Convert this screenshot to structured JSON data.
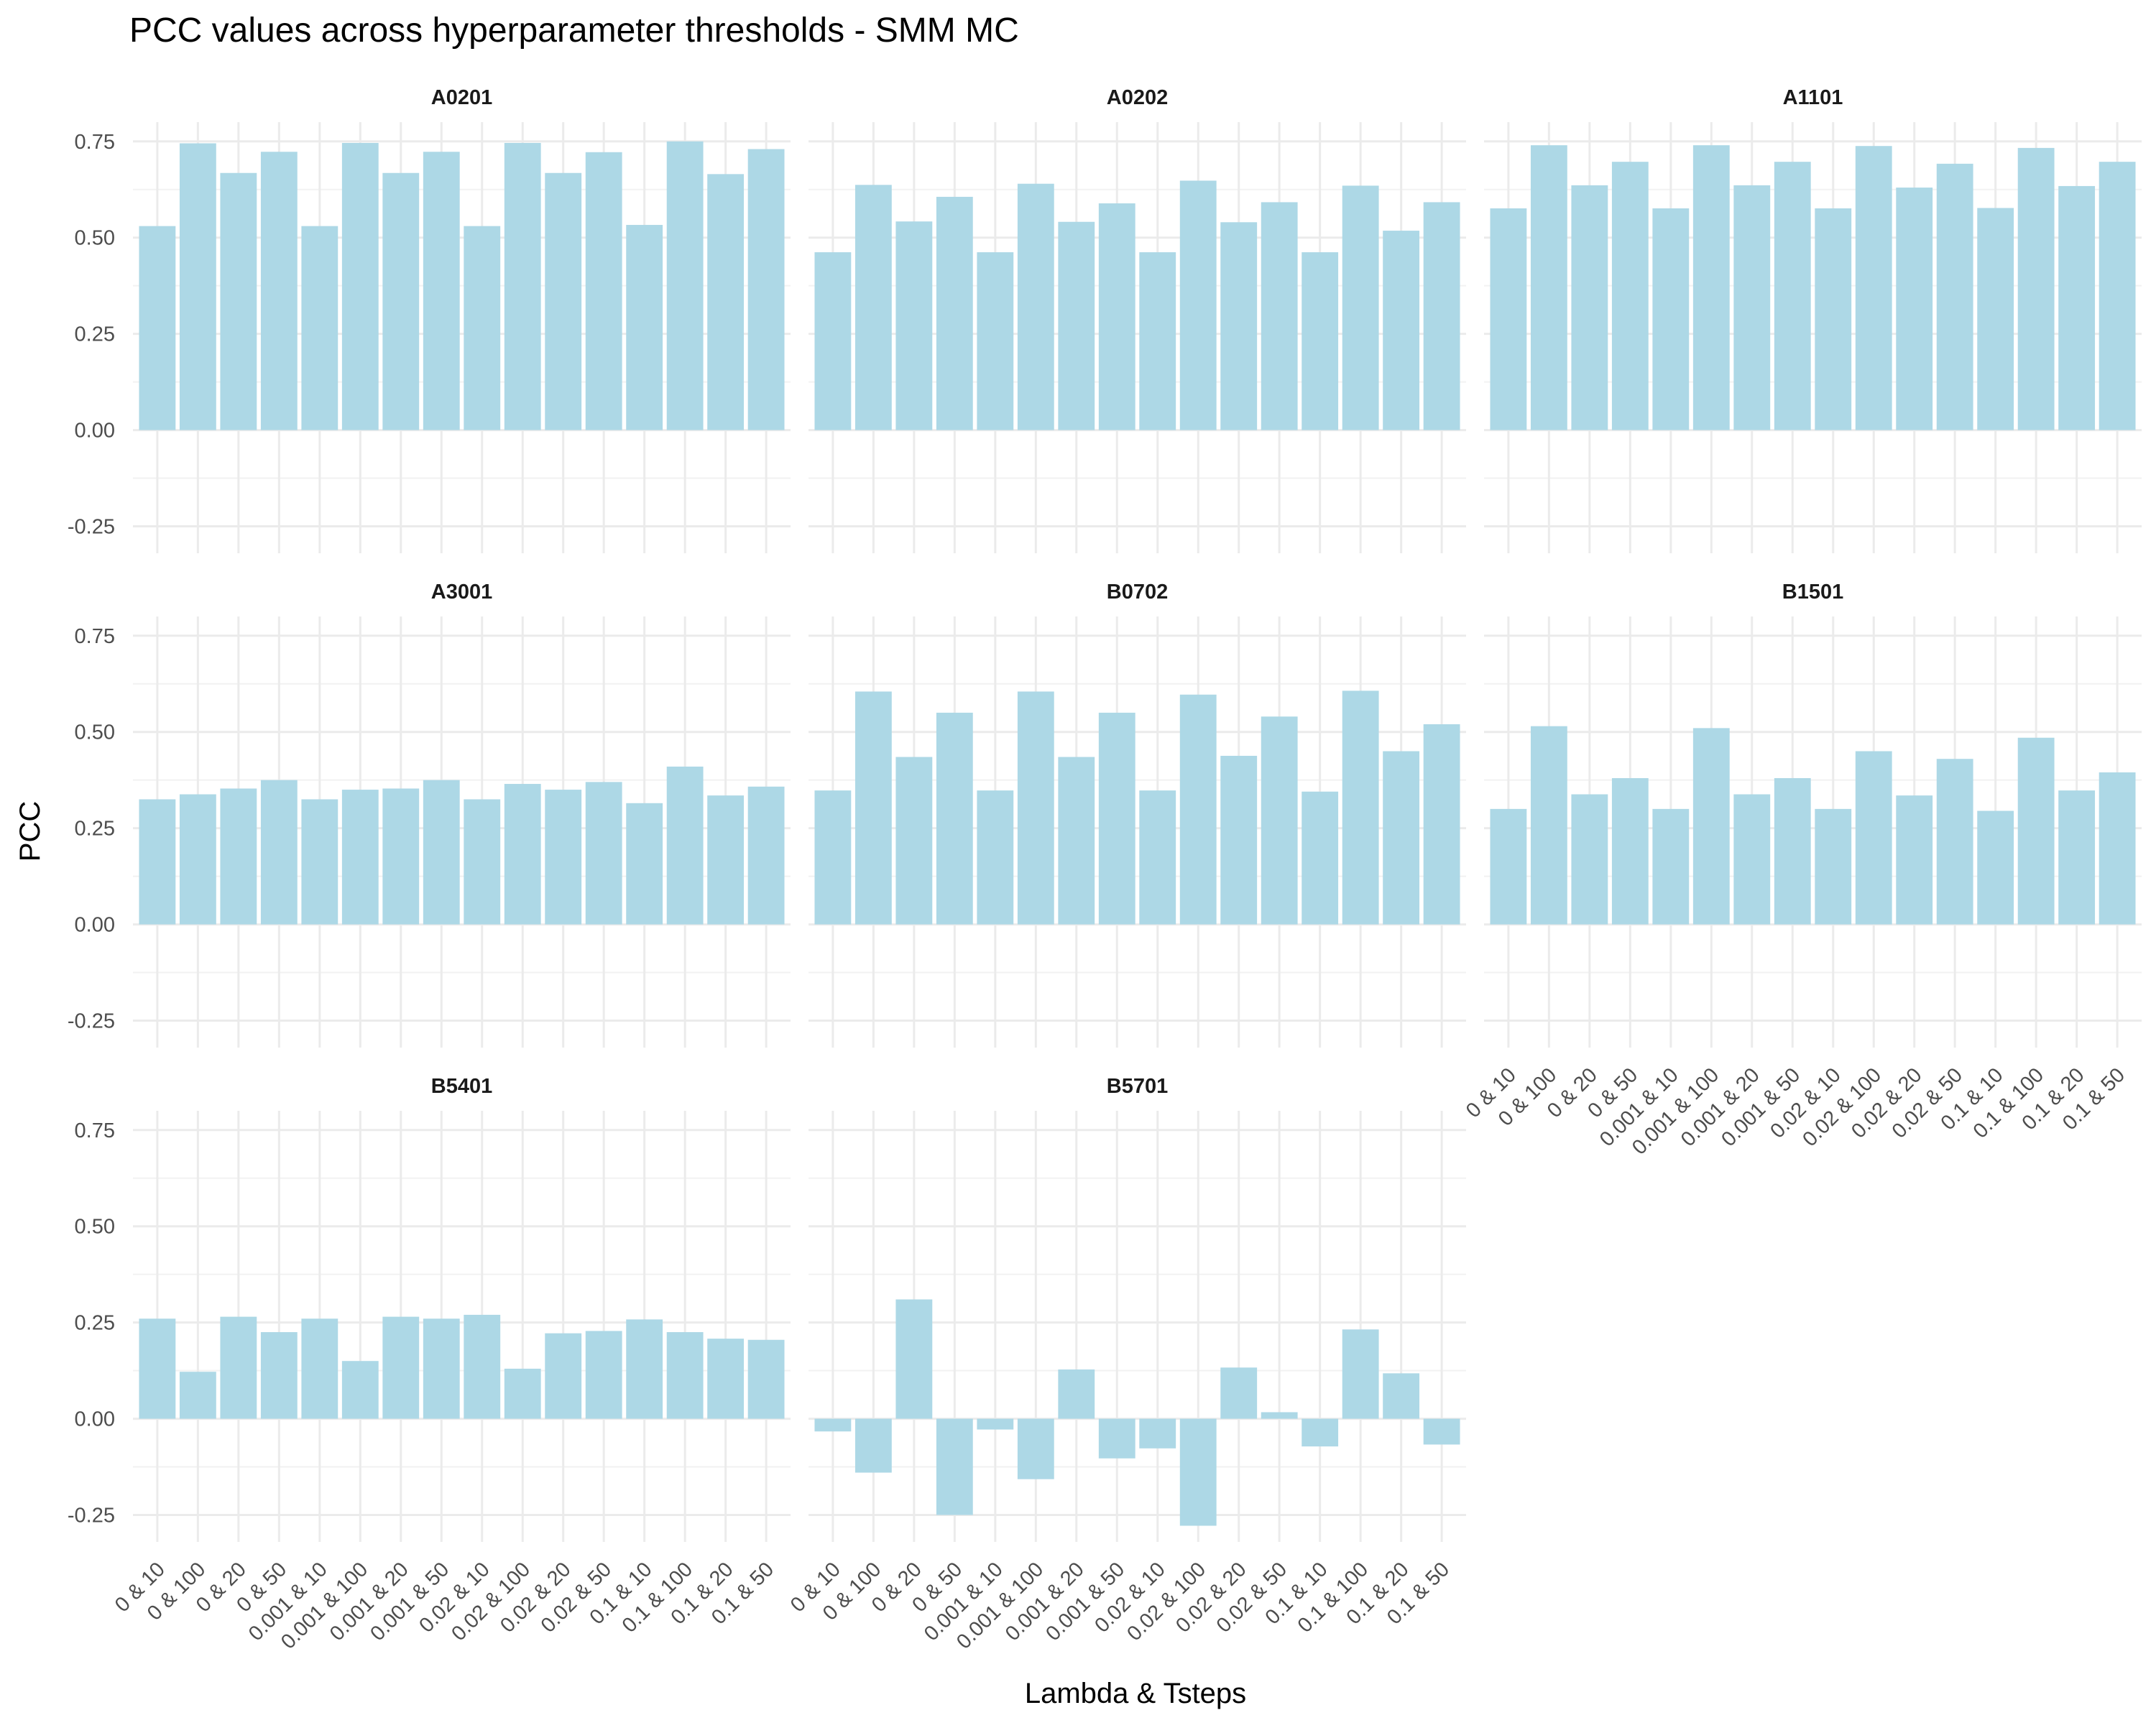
{
  "chart_data": {
    "type": "bar",
    "title": "PCC values across hyperparameter thresholds - SMM MC",
    "xlabel": "Lambda & Tsteps",
    "ylabel": "PCC",
    "ylim": [
      -0.32,
      0.8
    ],
    "yticks": [
      -0.25,
      0,
      0.25,
      0.5,
      0.75
    ],
    "ytick_labels": [
      "-0.25",
      "0.00",
      "0.25",
      "0.50",
      "0.75"
    ],
    "grid": true,
    "bar_color": "#ADD8E6",
    "categories": [
      "0 & 10",
      "0 & 100",
      "0 & 20",
      "0 & 50",
      "0.001 & 10",
      "0.001 & 100",
      "0.001 & 20",
      "0.001 & 50",
      "0.02 & 10",
      "0.02 & 100",
      "0.02 & 20",
      "0.02 & 50",
      "0.1 & 10",
      "0.1 & 100",
      "0.1 & 20",
      "0.1 & 50"
    ],
    "panels": [
      {
        "name": "A0201",
        "values": [
          0.53,
          0.745,
          0.668,
          0.723,
          0.53,
          0.746,
          0.668,
          0.723,
          0.53,
          0.746,
          0.668,
          0.722,
          0.533,
          0.75,
          0.665,
          0.73
        ]
      },
      {
        "name": "A0202",
        "values": [
          0.462,
          0.637,
          0.542,
          0.606,
          0.462,
          0.64,
          0.541,
          0.589,
          0.462,
          0.648,
          0.54,
          0.592,
          0.462,
          0.635,
          0.518,
          0.592
        ]
      },
      {
        "name": "A1101",
        "values": [
          0.576,
          0.74,
          0.636,
          0.697,
          0.576,
          0.74,
          0.636,
          0.697,
          0.576,
          0.738,
          0.63,
          0.692,
          0.577,
          0.733,
          0.634,
          0.697
        ]
      },
      {
        "name": "A3001",
        "values": [
          0.325,
          0.338,
          0.353,
          0.375,
          0.325,
          0.35,
          0.353,
          0.375,
          0.325,
          0.365,
          0.35,
          0.37,
          0.315,
          0.41,
          0.335,
          0.358
        ]
      },
      {
        "name": "B0702",
        "values": [
          0.348,
          0.605,
          0.435,
          0.55,
          0.348,
          0.605,
          0.435,
          0.55,
          0.348,
          0.597,
          0.438,
          0.54,
          0.345,
          0.607,
          0.45,
          0.52
        ]
      },
      {
        "name": "B1501",
        "values": [
          0.3,
          0.515,
          0.338,
          0.38,
          0.3,
          0.51,
          0.338,
          0.38,
          0.3,
          0.45,
          0.335,
          0.43,
          0.295,
          0.485,
          0.348,
          0.395
        ]
      },
      {
        "name": "B5401",
        "values": [
          0.26,
          0.122,
          0.265,
          0.225,
          0.26,
          0.15,
          0.265,
          0.26,
          0.27,
          0.13,
          0.222,
          0.228,
          0.258,
          0.225,
          0.208,
          0.205
        ]
      },
      {
        "name": "B5701",
        "values": [
          -0.033,
          -0.14,
          0.31,
          -0.25,
          -0.028,
          -0.157,
          0.128,
          -0.103,
          -0.077,
          -0.278,
          0.133,
          0.017,
          -0.072,
          0.232,
          0.118,
          -0.067
        ]
      }
    ]
  }
}
